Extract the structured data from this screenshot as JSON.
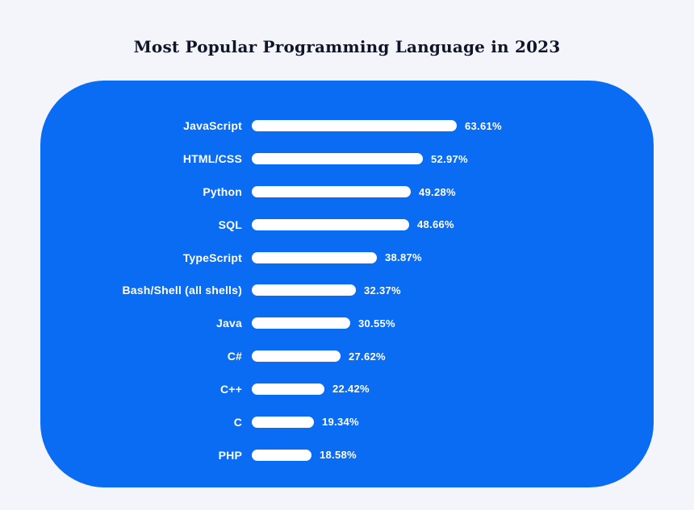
{
  "title": "Most Popular Programming Language in 2023",
  "chart_data": {
    "type": "bar",
    "orientation": "horizontal",
    "title": "Most Popular Programming Language in 2023",
    "categories": [
      "JavaScript",
      "HTML/CSS",
      "Python",
      "SQL",
      "TypeScript",
      "Bash/Shell (all shells)",
      "Java",
      "C#",
      "C++",
      "C",
      "PHP"
    ],
    "values": [
      63.61,
      52.97,
      49.28,
      48.66,
      38.87,
      32.37,
      30.55,
      27.62,
      22.42,
      19.34,
      18.58
    ],
    "value_labels": [
      "63.61%",
      "52.97%",
      "49.28%",
      "48.66%",
      "38.87%",
      "32.37%",
      "30.55%",
      "27.62%",
      "22.42%",
      "19.34%",
      "18.58%"
    ],
    "xlim": [
      0,
      65
    ],
    "grid": false,
    "legend": "none",
    "colors": {
      "panel_background": "#0a6cf2",
      "bar_fill": "#ffffff",
      "label_text": "#ffffff",
      "page_background": "#f4f5fb",
      "title_text": "#10162a"
    }
  }
}
